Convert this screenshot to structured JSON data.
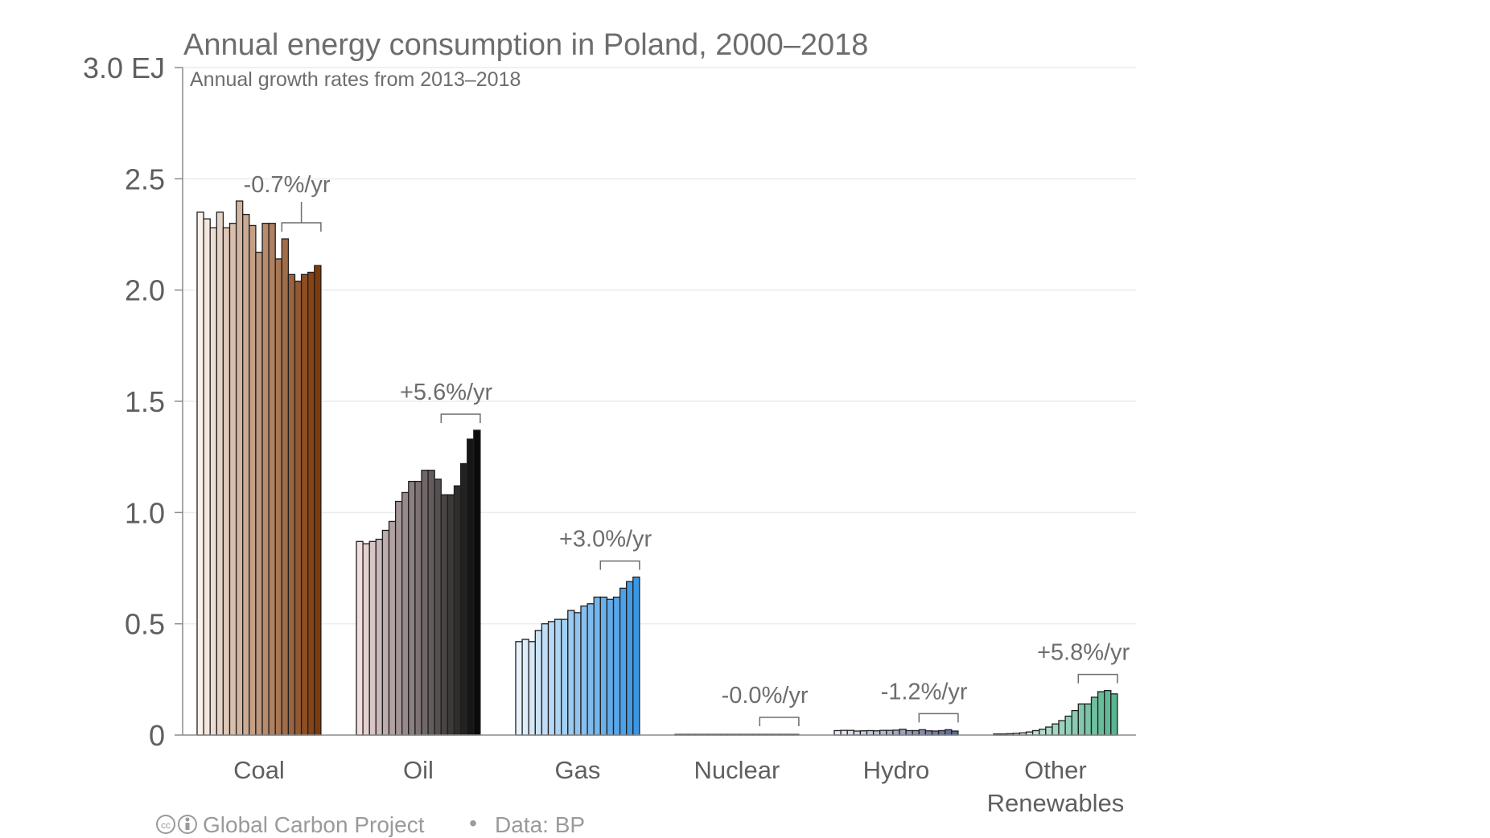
{
  "chart_data": {
    "type": "bar",
    "title": "Annual energy consumption in Poland, 2000–2018",
    "subtitle": "Annual growth rates from 2013–2018",
    "ylabel": "",
    "y_unit": "EJ",
    "ylim": [
      0,
      3.0
    ],
    "yticks": [
      {
        "value": 0,
        "label": "0"
      },
      {
        "value": 0.5,
        "label": "0.5"
      },
      {
        "value": 1.0,
        "label": "1.0"
      },
      {
        "value": 1.5,
        "label": "1.5"
      },
      {
        "value": 2.0,
        "label": "2.0"
      },
      {
        "value": 2.5,
        "label": "2.5"
      },
      {
        "value": 3.0,
        "label": "3.0 EJ"
      }
    ],
    "grid": true,
    "years": [
      2000,
      2001,
      2002,
      2003,
      2004,
      2005,
      2006,
      2007,
      2008,
      2009,
      2010,
      2011,
      2012,
      2013,
      2014,
      2015,
      2016,
      2017,
      2018
    ],
    "groups": [
      {
        "label": "Coal",
        "rate": "-0.7%/yr",
        "color_light": "#fbf1ea",
        "color_dark": "#7f3a0b",
        "values": [
          2.35,
          2.32,
          2.28,
          2.35,
          2.28,
          2.3,
          2.4,
          2.34,
          2.29,
          2.17,
          2.3,
          2.3,
          2.14,
          2.23,
          2.07,
          2.04,
          2.07,
          2.08,
          2.11
        ]
      },
      {
        "label": "Oil",
        "rate": "+5.6%/yr",
        "color_light": "#f2dcdc",
        "color_dark": "#0a0a0a",
        "values": [
          0.87,
          0.86,
          0.87,
          0.88,
          0.92,
          0.96,
          1.05,
          1.09,
          1.14,
          1.14,
          1.19,
          1.19,
          1.15,
          1.08,
          1.08,
          1.12,
          1.22,
          1.33,
          1.37
        ]
      },
      {
        "label": "Gas",
        "rate": "+3.0%/yr",
        "color_light": "#e8f2fb",
        "color_dark": "#3a97e4",
        "values": [
          0.42,
          0.43,
          0.42,
          0.47,
          0.5,
          0.51,
          0.52,
          0.52,
          0.56,
          0.55,
          0.58,
          0.59,
          0.62,
          0.62,
          0.61,
          0.62,
          0.66,
          0.69,
          0.71
        ]
      },
      {
        "label": "Nuclear",
        "rate": "-0.0%/yr",
        "color_light": "#f2f2f2",
        "color_dark": "#333333",
        "values": [
          0,
          0,
          0,
          0,
          0,
          0,
          0,
          0,
          0,
          0,
          0,
          0,
          0,
          0,
          0,
          0,
          0,
          0,
          0
        ]
      },
      {
        "label": "Hydro",
        "rate": "-1.2%/yr",
        "color_light": "#e8ebf6",
        "color_dark": "#5a6894",
        "values": [
          0.02,
          0.021,
          0.021,
          0.018,
          0.019,
          0.02,
          0.019,
          0.021,
          0.021,
          0.022,
          0.026,
          0.02,
          0.02,
          0.024,
          0.019,
          0.018,
          0.02,
          0.024,
          0.018
        ]
      },
      {
        "label": "Other\nRenewables",
        "rate": "+5.8%/yr",
        "color_light": "#eef8f3",
        "color_dark": "#57b690",
        "values": [
          0.005,
          0.005,
          0.006,
          0.008,
          0.01,
          0.014,
          0.02,
          0.026,
          0.036,
          0.05,
          0.065,
          0.085,
          0.11,
          0.14,
          0.14,
          0.17,
          0.195,
          0.2,
          0.185
        ]
      }
    ]
  },
  "credits": {
    "cc_icon": "cc-by-icon",
    "project": "Global Carbon Project",
    "separator": "•",
    "source": "Data: BP"
  }
}
